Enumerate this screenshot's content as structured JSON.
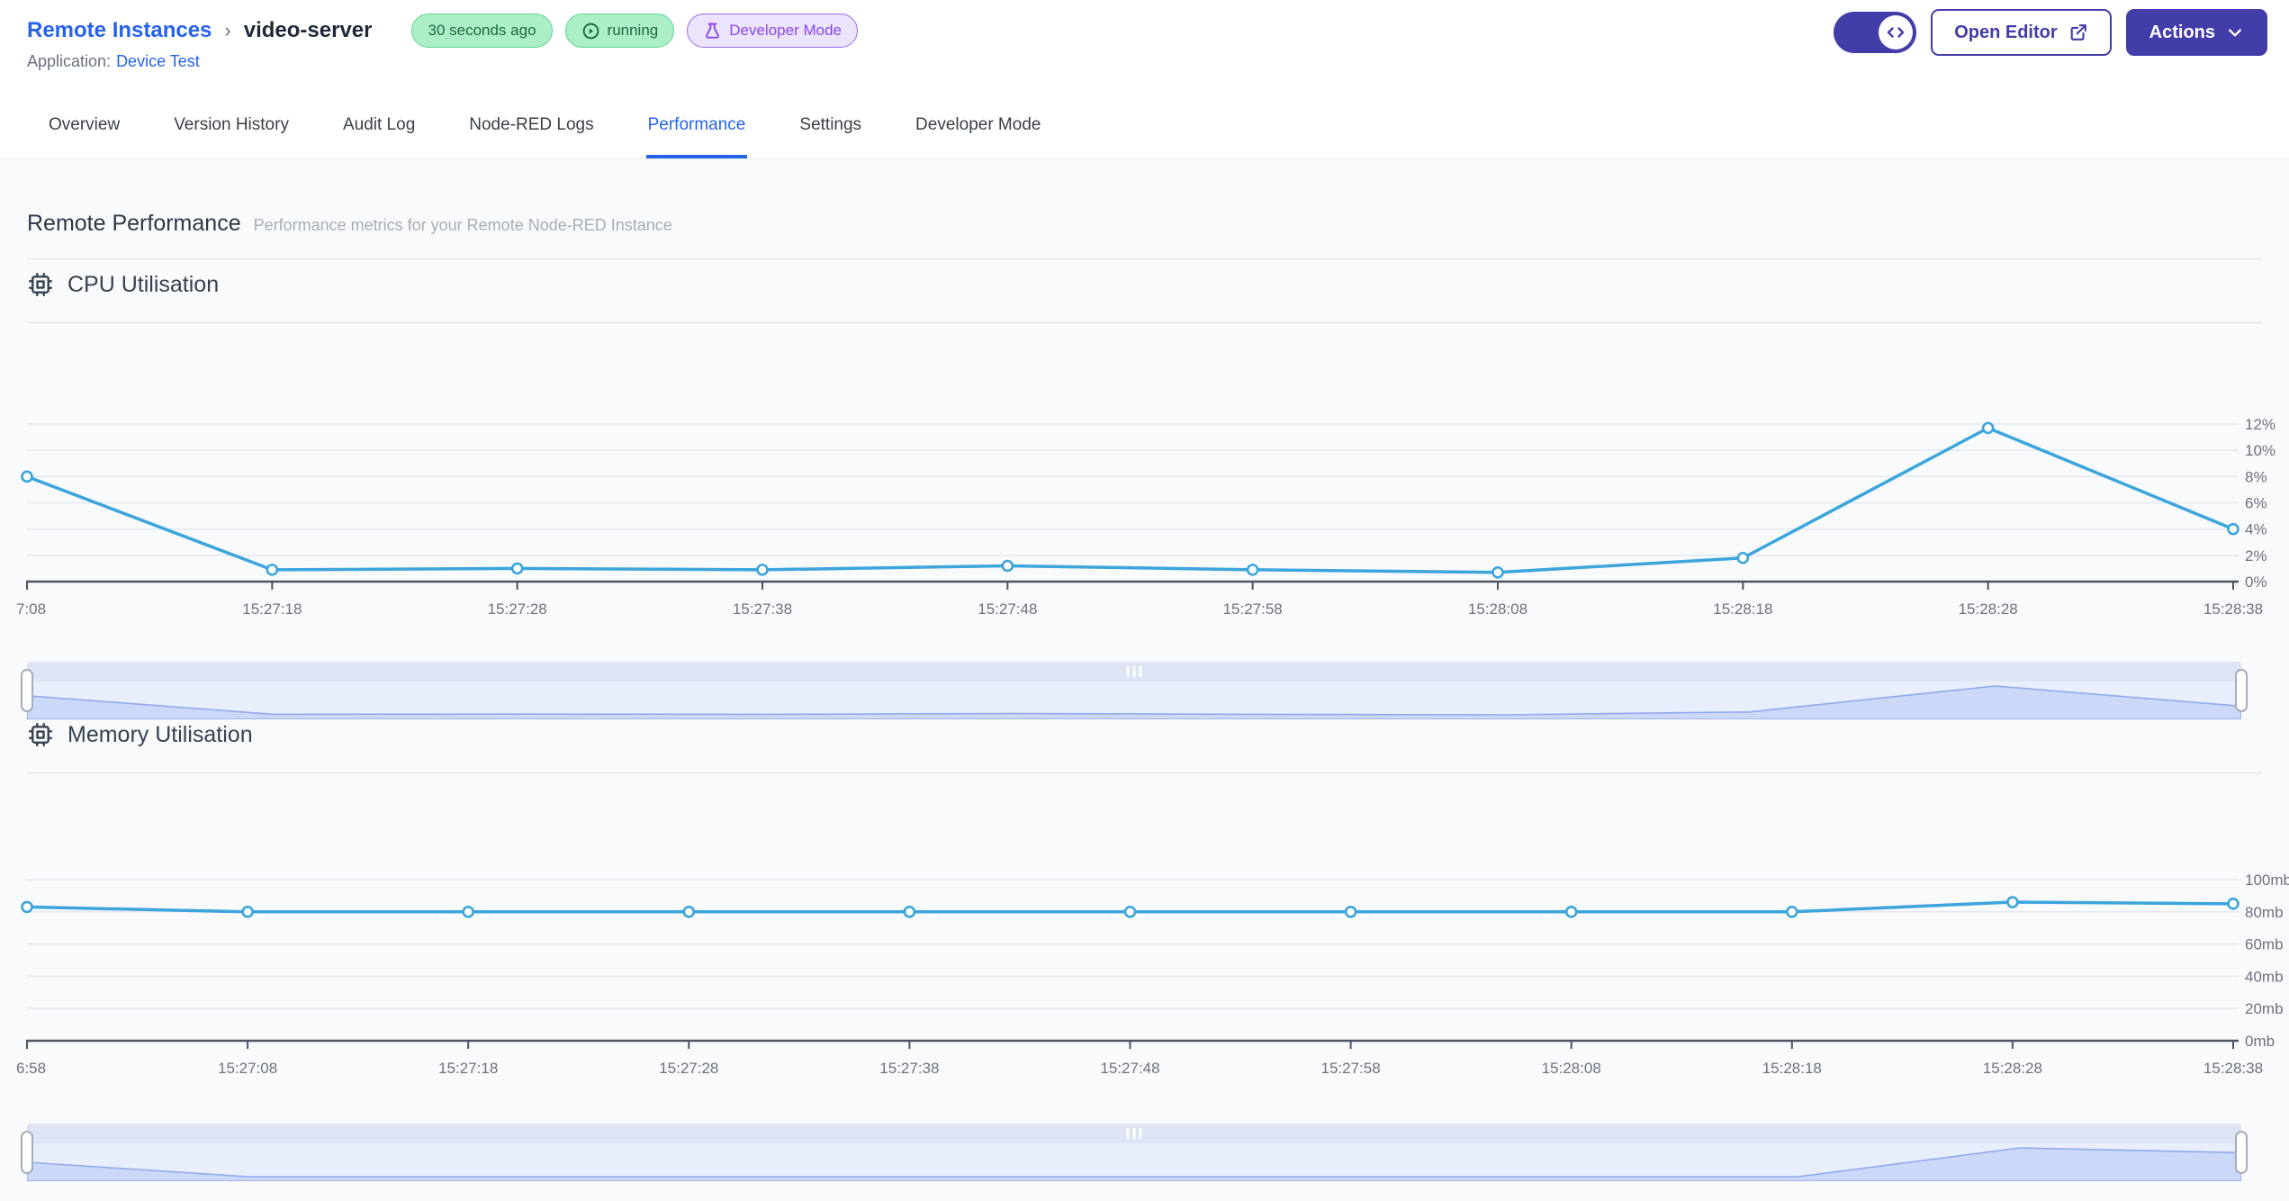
{
  "header": {
    "breadcrumb": {
      "root": "Remote Instances",
      "separator": "›",
      "current": "video-server"
    },
    "badges": {
      "last_seen": "30 seconds ago",
      "status": "running",
      "mode": "Developer Mode"
    },
    "application": {
      "label": "Application:",
      "name": "Device Test"
    },
    "buttons": {
      "open_editor": "Open Editor",
      "actions": "Actions"
    }
  },
  "tabs": [
    {
      "label": "Overview"
    },
    {
      "label": "Version History"
    },
    {
      "label": "Audit Log"
    },
    {
      "label": "Node-RED Logs"
    },
    {
      "label": "Performance",
      "active": true
    },
    {
      "label": "Settings"
    },
    {
      "label": "Developer Mode"
    }
  ],
  "page": {
    "title": "Remote Performance",
    "subtitle": "Performance metrics for your Remote Node-RED Instance"
  },
  "colors": {
    "accent_indigo": "#423DA8",
    "link_blue": "#2563EB",
    "chart_line": "#3BA5DC",
    "grid_line": "#E4E9F1",
    "axis_line": "#4B5563",
    "badge_green_bg": "#ACEFC6",
    "badge_green_border": "#5ED796",
    "badge_green_text": "#1B6A45",
    "badge_purple_bg": "#EBE4FC",
    "badge_purple_border": "#9B6CF1",
    "badge_purple_text": "#8A46EE",
    "brush_area_fill": "#CBD8F7",
    "brush_area_stroke": "#93A9EC"
  },
  "chart_data": [
    {
      "type": "line",
      "title": "CPU Utilisation",
      "icon": "cpu-chip-icon",
      "x": [
        "7:08",
        "15:27:18",
        "15:27:28",
        "15:27:38",
        "15:27:48",
        "15:27:58",
        "15:28:08",
        "15:28:18",
        "15:28:28",
        "15:28:38"
      ],
      "values": [
        8,
        0.9,
        1,
        0.9,
        1.2,
        0.9,
        0.7,
        1.8,
        11.7,
        4
      ],
      "unit": "%",
      "ylim": [
        0,
        12
      ],
      "yticks": [
        {
          "value": 0,
          "label": "0%"
        },
        {
          "value": 2,
          "label": "2%"
        },
        {
          "value": 4,
          "label": "4%"
        },
        {
          "value": 6,
          "label": "6%"
        },
        {
          "value": 8,
          "label": "8%"
        },
        {
          "value": 10,
          "label": "10%"
        },
        {
          "value": 12,
          "label": "12%"
        }
      ],
      "ylabel_side": "right",
      "grid": true,
      "legend": "none",
      "line_color": "#3BA5DC"
    },
    {
      "type": "line",
      "title": "Memory Utilisation",
      "icon": "cpu-chip-icon",
      "x": [
        "6:58",
        "15:27:08",
        "15:27:18",
        "15:27:28",
        "15:27:38",
        "15:27:48",
        "15:27:58",
        "15:28:08",
        "15:28:18",
        "15:28:28",
        "15:28:38"
      ],
      "values": [
        83,
        80,
        80,
        80,
        80,
        80,
        80,
        80,
        80,
        86,
        85
      ],
      "unit": "mb",
      "ylim": [
        0,
        100
      ],
      "yticks": [
        {
          "value": 0,
          "label": "0mb"
        },
        {
          "value": 20,
          "label": "20mb"
        },
        {
          "value": 40,
          "label": "40mb"
        },
        {
          "value": 60,
          "label": "60mb"
        },
        {
          "value": 80,
          "label": "80mb"
        },
        {
          "value": 100,
          "label": "100mb"
        }
      ],
      "ylabel_side": "right",
      "grid": true,
      "legend": "none",
      "line_color": "#3BA5DC"
    }
  ]
}
